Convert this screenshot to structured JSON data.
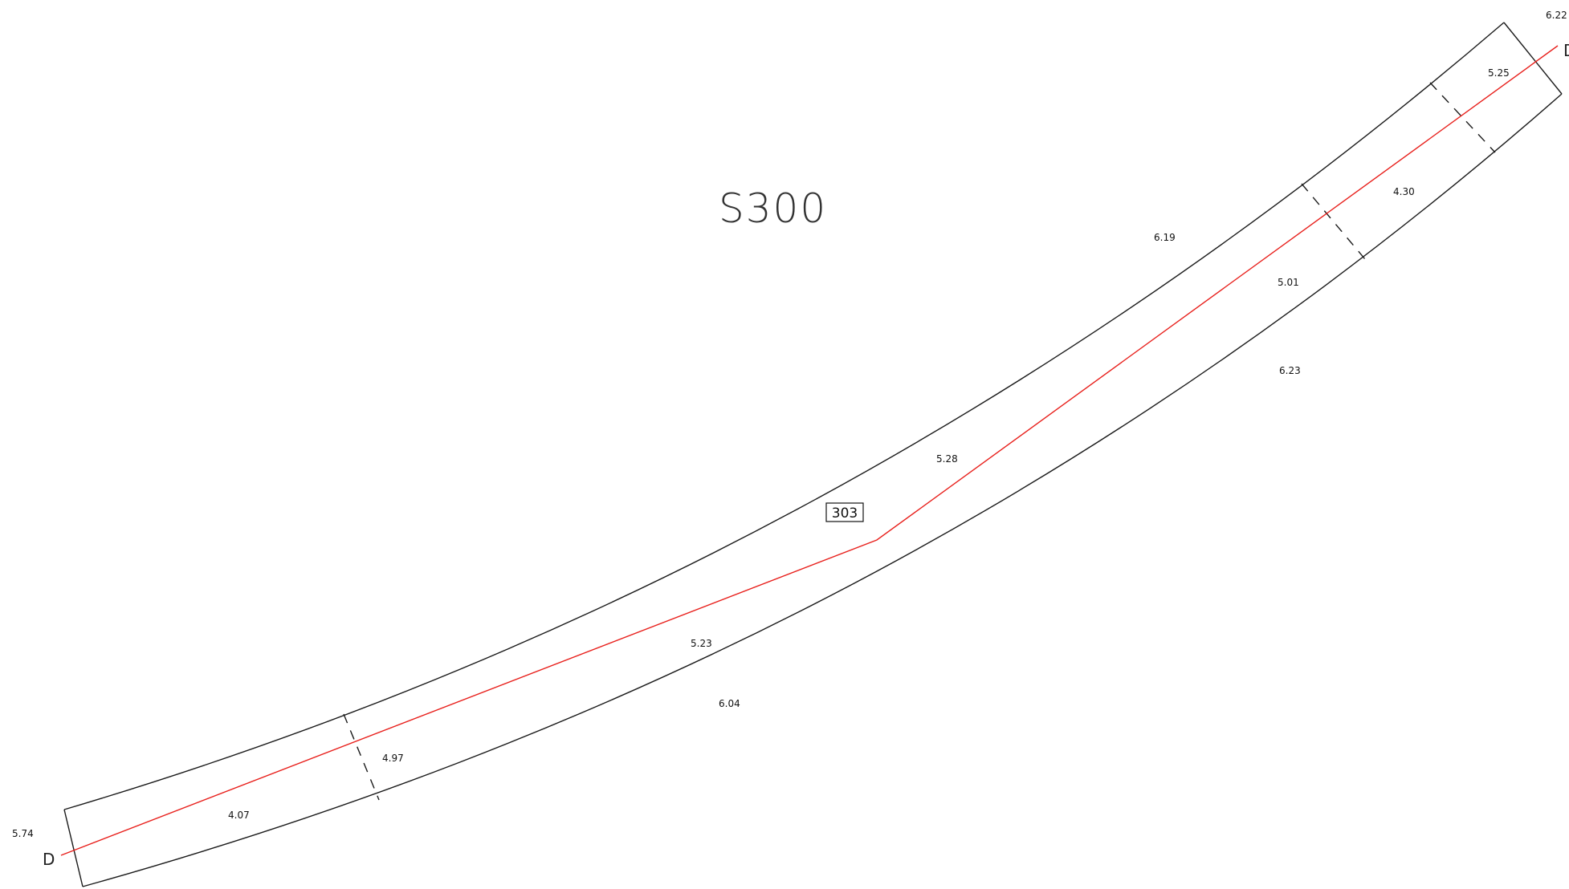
{
  "drawing": {
    "sheet_label": "S300",
    "segment_tag": "303",
    "section_marks": {
      "start": "D",
      "end": "D"
    },
    "colors": {
      "outline": "#1a1a1a",
      "centerline": "#e8201c",
      "background": "#ffffff"
    },
    "dimensions": {
      "outer_top": "6.19",
      "outer_bottom_upper": "6.23",
      "outer_bottom_lower": "6.04",
      "end_width_right": "6.22",
      "end_width_left": "5.74",
      "center_seg_1": "4.07",
      "center_seg_2": "4.97",
      "center_seg_3": "5.23",
      "center_seg_4": "5.28",
      "center_seg_5": "5.01",
      "center_seg_6": "4.30",
      "center_seg_7": "5.25"
    }
  }
}
